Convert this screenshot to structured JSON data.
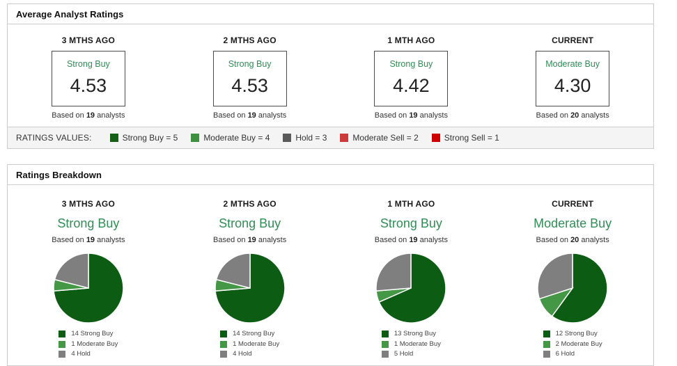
{
  "strings": {
    "based_on_prefix": "Based on",
    "based_on_suffix": "analysts"
  },
  "colors": {
    "strong_buy_green": "#0d5c13",
    "moderate_buy_green": "#449745",
    "hold_gray": "#7f7f7f",
    "rating_text_green": "#2f8e55",
    "panel_border": "#cccccc",
    "legend_bar_bg": "#f4f4f4"
  },
  "average_panel": {
    "title": "Average Analyst Ratings",
    "cards": [
      {
        "period": "3 MTHS AGO",
        "rating": "Strong Buy",
        "value": "4.53",
        "analysts": "19"
      },
      {
        "period": "2 MTHS AGO",
        "rating": "Strong Buy",
        "value": "4.53",
        "analysts": "19"
      },
      {
        "period": "1 MTH AGO",
        "rating": "Strong Buy",
        "value": "4.42",
        "analysts": "19"
      },
      {
        "period": "CURRENT",
        "rating": "Moderate Buy",
        "value": "4.30",
        "analysts": "20"
      }
    ],
    "ratings_values_label": "RATINGS VALUES:",
    "legend": [
      {
        "label": "Strong Buy = 5",
        "color": "#156016"
      },
      {
        "label": "Moderate Buy = 4",
        "color": "#3f8f43"
      },
      {
        "label": "Hold = 3",
        "color": "#5a5a5a"
      },
      {
        "label": "Moderate Sell = 2",
        "color": "#cc3b3b"
      },
      {
        "label": "Strong Sell = 1",
        "color": "#cc0000"
      }
    ]
  },
  "breakdown_panel": {
    "title": "Ratings Breakdown"
  },
  "chart_data": [
    {
      "type": "table",
      "title": "Average Analyst Ratings",
      "columns": [
        "3 MTHS AGO",
        "2 MTHS AGO",
        "1 MTH AGO",
        "CURRENT"
      ],
      "rows": [
        [
          "Strong Buy",
          "Strong Buy",
          "Strong Buy",
          "Moderate Buy"
        ],
        [
          4.53,
          4.53,
          4.42,
          4.3
        ],
        [
          "19 analysts",
          "19 analysts",
          "19 analysts",
          "20 analysts"
        ]
      ]
    },
    {
      "type": "pie",
      "period": "3 MTHS AGO",
      "rating": "Strong Buy",
      "analysts": "19",
      "labels": [
        "Strong Buy",
        "Moderate Buy",
        "Hold"
      ],
      "values": [
        14,
        1,
        4
      ],
      "colors": [
        "#0d5c13",
        "#449745",
        "#7f7f7f"
      ],
      "start_angle": "top",
      "direction": "clockwise"
    },
    {
      "type": "pie",
      "period": "2 MTHS AGO",
      "rating": "Strong Buy",
      "analysts": "19",
      "labels": [
        "Strong Buy",
        "Moderate Buy",
        "Hold"
      ],
      "values": [
        14,
        1,
        4
      ],
      "colors": [
        "#0d5c13",
        "#449745",
        "#7f7f7f"
      ],
      "start_angle": "top",
      "direction": "clockwise"
    },
    {
      "type": "pie",
      "period": "1 MTH AGO",
      "rating": "Strong Buy",
      "analysts": "19",
      "labels": [
        "Strong Buy",
        "Moderate Buy",
        "Hold"
      ],
      "values": [
        13,
        1,
        5
      ],
      "colors": [
        "#0d5c13",
        "#449745",
        "#7f7f7f"
      ],
      "start_angle": "top",
      "direction": "clockwise"
    },
    {
      "type": "pie",
      "period": "CURRENT",
      "rating": "Moderate Buy",
      "analysts": "20",
      "labels": [
        "Strong Buy",
        "Moderate Buy",
        "Hold"
      ],
      "values": [
        12,
        2,
        6
      ],
      "colors": [
        "#0d5c13",
        "#449745",
        "#7f7f7f"
      ],
      "start_angle": "top",
      "direction": "clockwise"
    }
  ]
}
